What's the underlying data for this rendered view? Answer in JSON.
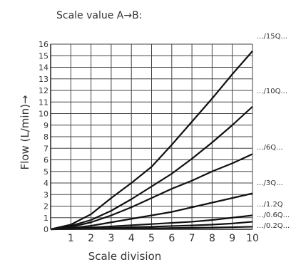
{
  "header": {
    "text": "Scale value A→B:"
  },
  "chart_data": {
    "type": "line",
    "title": "",
    "xlabel": "Scale division",
    "ylabel": "Flow (L/min)→",
    "xlim": [
      0,
      10
    ],
    "ylim": [
      0,
      16
    ],
    "x_ticks": [
      1,
      2,
      3,
      4,
      5,
      6,
      7,
      8,
      9,
      10
    ],
    "y_ticks": [
      0,
      1,
      2,
      3,
      4,
      5,
      6,
      7,
      8,
      9,
      10,
      11,
      12,
      13,
      14,
      15,
      16
    ],
    "grid": true,
    "line_color": "#111111",
    "series": [
      {
        "name": ".../15Q...",
        "x": [
          0,
          1,
          2,
          3,
          4,
          5,
          6,
          7,
          8,
          9,
          10
        ],
        "y": [
          0,
          0.4,
          1.3,
          2.7,
          4.0,
          5.4,
          7.3,
          9.3,
          11.3,
          13.4,
          15.4
        ]
      },
      {
        "name": ".../10Q...",
        "x": [
          0,
          1,
          2,
          3,
          4,
          5,
          6,
          7,
          8,
          9,
          10
        ],
        "y": [
          0,
          0.3,
          0.8,
          1.6,
          2.6,
          3.7,
          4.8,
          6.1,
          7.5,
          9.0,
          10.6
        ]
      },
      {
        "name": ".../6Q...",
        "x": [
          0,
          1,
          2,
          3,
          4,
          5,
          6,
          7,
          8,
          9,
          10
        ],
        "y": [
          0,
          0.2,
          0.6,
          1.2,
          1.9,
          2.7,
          3.5,
          4.2,
          5.0,
          5.7,
          6.5
        ]
      },
      {
        "name": ".../3Q...",
        "x": [
          0,
          1,
          2,
          3,
          4,
          5,
          6,
          7,
          8,
          9,
          10
        ],
        "y": [
          0,
          0.1,
          0.3,
          0.6,
          0.9,
          1.2,
          1.5,
          1.9,
          2.3,
          2.7,
          3.1
        ]
      },
      {
        "name": ".../1.2Q",
        "x": [
          0,
          1,
          2,
          3,
          4,
          5,
          6,
          7,
          8,
          9,
          10
        ],
        "y": [
          0,
          0.05,
          0.15,
          0.25,
          0.35,
          0.45,
          0.55,
          0.65,
          0.8,
          1.0,
          1.2
        ]
      },
      {
        "name": ".../0.6Q...",
        "x": [
          0,
          1,
          2,
          3,
          4,
          5,
          6,
          7,
          8,
          9,
          10
        ],
        "y": [
          0,
          0.03,
          0.08,
          0.12,
          0.18,
          0.22,
          0.28,
          0.33,
          0.4,
          0.5,
          0.65
        ]
      },
      {
        "name": ".../0.2Q...",
        "x": [
          0,
          1,
          2,
          3,
          4,
          5,
          6,
          7,
          8,
          9,
          10
        ],
        "y": [
          0,
          0.01,
          0.03,
          0.05,
          0.07,
          0.09,
          0.11,
          0.13,
          0.15,
          0.18,
          0.22
        ]
      }
    ]
  }
}
